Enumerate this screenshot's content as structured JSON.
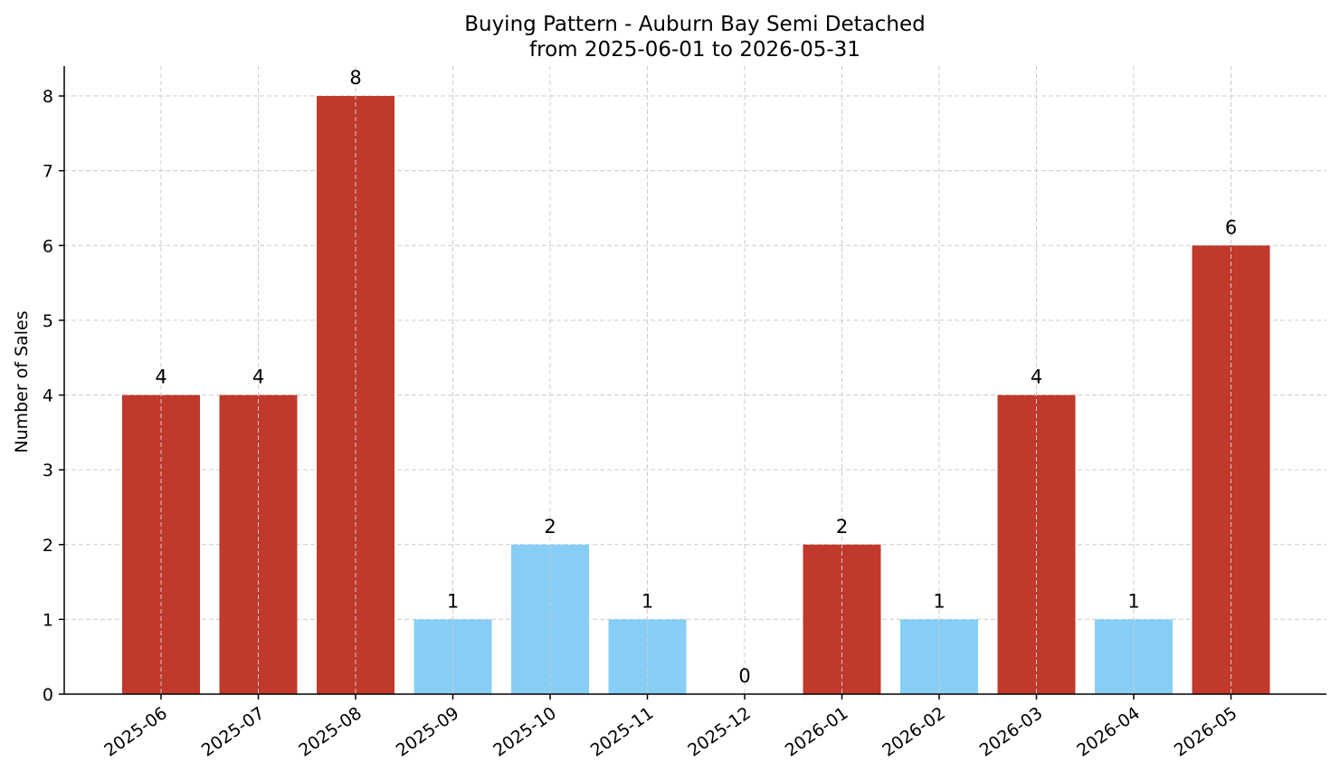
{
  "chart_data": {
    "type": "bar",
    "title": "Buying Pattern - Auburn Bay Semi Detached",
    "subtitle": "from 2025-06-01 to 2026-05-31",
    "xlabel": "",
    "ylabel": "Number of Sales",
    "ylim": [
      0,
      8.4
    ],
    "yticks": [
      0,
      1,
      2,
      3,
      4,
      5,
      6,
      7,
      8
    ],
    "grid": true,
    "categories": [
      "2025-06",
      "2025-07",
      "2025-08",
      "2025-09",
      "2025-10",
      "2025-11",
      "2025-12",
      "2026-01",
      "2026-02",
      "2026-03",
      "2026-04",
      "2026-05"
    ],
    "values": [
      4,
      4,
      8,
      1,
      2,
      1,
      0,
      2,
      1,
      4,
      1,
      6
    ],
    "bar_colors": [
      "#c0392b",
      "#c0392b",
      "#c0392b",
      "#87cef7",
      "#87cef7",
      "#87cef7",
      "#87cef7",
      "#c0392b",
      "#87cef7",
      "#c0392b",
      "#87cef7",
      "#c0392b"
    ]
  }
}
